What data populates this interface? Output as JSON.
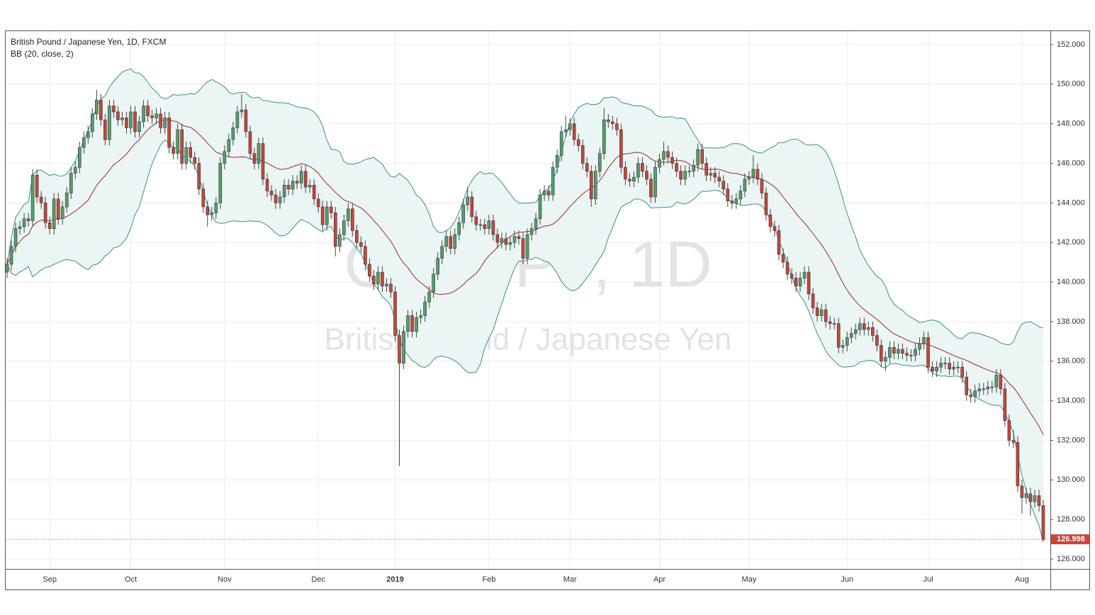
{
  "chart_data": {
    "type": "candlestick",
    "title": "British Pound / Japanese Yen, 1D, FXCM",
    "subtitle": "BB (20, close, 2)",
    "watermark": "GBPJPY, 1D",
    "watermark_subtitle": "British Pound / Japanese Yen",
    "bb_period": 20,
    "bb_mult": 2,
    "up_color": "#53a06b",
    "down_color": "#c8453a",
    "band_color": "#3b8f8c",
    "band_fill": "#eaf5f4",
    "basis_color": "#9b2a2a",
    "grid": true,
    "ylim": [
      125.5,
      152.68
    ],
    "yticks": [
      {
        "value": 126,
        "label": "126.000"
      },
      {
        "value": 128,
        "label": "128.000"
      },
      {
        "value": 130,
        "label": "130.000"
      },
      {
        "value": 132,
        "label": "132.000"
      },
      {
        "value": 134,
        "label": "134.000"
      },
      {
        "value": 136,
        "label": "136.000"
      },
      {
        "value": 138,
        "label": "138.000"
      },
      {
        "value": 140,
        "label": "140.000"
      },
      {
        "value": 142,
        "label": "142.000"
      },
      {
        "value": 144,
        "label": "144.000"
      },
      {
        "value": 146,
        "label": "146.000"
      },
      {
        "value": 148,
        "label": "148.000"
      },
      {
        "value": 150,
        "label": "150.000"
      },
      {
        "value": 152,
        "label": "152.000"
      }
    ],
    "categories": [
      null,
      null,
      null,
      null,
      null,
      null,
      null,
      null,
      null,
      null,
      "Sep",
      null,
      null,
      null,
      null,
      null,
      null,
      null,
      null,
      null,
      null,
      null,
      null,
      null,
      null,
      null,
      null,
      null,
      null,
      "Oct",
      null,
      null,
      null,
      null,
      null,
      null,
      null,
      null,
      null,
      null,
      null,
      null,
      null,
      null,
      null,
      null,
      null,
      null,
      null,
      null,
      null,
      "Nov",
      null,
      null,
      null,
      null,
      null,
      null,
      null,
      null,
      null,
      null,
      null,
      null,
      null,
      null,
      null,
      null,
      null,
      null,
      null,
      null,
      null,
      "Dec",
      null,
      null,
      null,
      null,
      null,
      null,
      null,
      null,
      null,
      null,
      null,
      null,
      null,
      null,
      null,
      null,
      null,
      "2019",
      null,
      null,
      null,
      null,
      null,
      null,
      null,
      null,
      null,
      null,
      null,
      null,
      null,
      null,
      null,
      null,
      null,
      null,
      null,
      null,
      null,
      "Feb",
      null,
      null,
      null,
      null,
      null,
      null,
      null,
      null,
      null,
      null,
      null,
      null,
      null,
      null,
      null,
      null,
      null,
      null,
      "Mar",
      null,
      null,
      null,
      null,
      null,
      null,
      null,
      null,
      null,
      null,
      null,
      null,
      null,
      null,
      null,
      null,
      null,
      null,
      null,
      null,
      "Apr",
      null,
      null,
      null,
      null,
      null,
      null,
      null,
      null,
      null,
      null,
      null,
      null,
      null,
      null,
      null,
      null,
      null,
      null,
      null,
      null,
      "May",
      null,
      null,
      null,
      null,
      null,
      null,
      null,
      null,
      null,
      null,
      null,
      null,
      null,
      null,
      null,
      null,
      null,
      null,
      null,
      null,
      null,
      null,
      "Jun",
      null,
      null,
      null,
      null,
      null,
      null,
      null,
      null,
      null,
      null,
      null,
      null,
      null,
      null,
      null,
      null,
      null,
      null,
      "Jul",
      null,
      null,
      null,
      null,
      null,
      null,
      null,
      null,
      null,
      null,
      null,
      null,
      null,
      null,
      null,
      null,
      null,
      null,
      null,
      null,
      null,
      "Aug",
      null,
      null,
      null,
      null,
      null
    ],
    "open": [
      140.5,
      140.9,
      141.8,
      142.7,
      142.8,
      143.2,
      143.1,
      145.4,
      144.3,
      144.0,
      143.0,
      142.7,
      144.2,
      143.2,
      143.8,
      144.5,
      145.5,
      145.8,
      146.8,
      147.3,
      147.6,
      148.5,
      149.2,
      148.2,
      147.2,
      148.9,
      148.6,
      148.2,
      148.3,
      147.8,
      148.6,
      147.6,
      148.1,
      148.9,
      148.4,
      148.3,
      148.5,
      147.8,
      148.3,
      146.8,
      146.5,
      147.7,
      146.0,
      146.8,
      146.3,
      146.0,
      144.7,
      143.8,
      143.4,
      143.5,
      144.0,
      146.0,
      146.6,
      147.2,
      147.8,
      148.6,
      148.7,
      147.6,
      146.5,
      146.0,
      147.0,
      145.2,
      144.6,
      144.4,
      144.0,
      144.3,
      144.9,
      144.7,
      145.1,
      145.0,
      145.6,
      144.8,
      144.9,
      144.2,
      143.8,
      142.9,
      143.8,
      143.5,
      141.8,
      142.4,
      143.1,
      143.7,
      142.6,
      142.0,
      141.8,
      140.9,
      140.3,
      139.9,
      140.5,
      139.8,
      139.9,
      139.5,
      137.3,
      135.9,
      137.5,
      138.3,
      137.5,
      138.2,
      138.3,
      139.0,
      139.5,
      140.4,
      141.2,
      141.8,
      142.3,
      141.7,
      142.4,
      143.0,
      143.9,
      144.3,
      143.3,
      142.9,
      142.9,
      142.7,
      143.1,
      142.4,
      142.0,
      142.2,
      141.9,
      142.0,
      142.3,
      142.2,
      141.2,
      142.4,
      142.7,
      143.2,
      144.4,
      144.6,
      144.4,
      145.8,
      146.4,
      147.6,
      147.7,
      148.0,
      147.2,
      146.9,
      146.0,
      145.6,
      144.2,
      145.6,
      146.5,
      148.2,
      148.1,
      148.0,
      147.7,
      145.8,
      145.2,
      145.1,
      145.3,
      146.0,
      145.6,
      145.2,
      144.3,
      145.8,
      146.2,
      146.6,
      146.3,
      146.0,
      145.6,
      145.2,
      145.6,
      145.6,
      145.9,
      146.7,
      146.0,
      145.4,
      145.5,
      145.3,
      145.1,
      144.7,
      144.1,
      144.0,
      144.2,
      144.6,
      145.2,
      145.3,
      145.7,
      145.2,
      144.5,
      143.4,
      142.8,
      142.6,
      141.4,
      141.0,
      140.4,
      140.2,
      139.8,
      140.2,
      140.5,
      139.4,
      138.7,
      138.3,
      138.6,
      138.0,
      137.9,
      137.9,
      136.7,
      136.8,
      137.2,
      137.4,
      137.6,
      137.9,
      137.6,
      137.7,
      137.3,
      136.8,
      136.0,
      136.2,
      136.7,
      136.4,
      136.6,
      136.4,
      136.3,
      136.3,
      136.6,
      136.9,
      137.2,
      135.7,
      135.5,
      135.7,
      135.9,
      135.9,
      135.6,
      135.7,
      135.7,
      135.2,
      134.3,
      134.2,
      134.5,
      134.6,
      134.6,
      134.7,
      134.7,
      135.3,
      134.6,
      133.0,
      132.0,
      131.9,
      129.7,
      129.1,
      129.3,
      128.9,
      129.2,
      128.7
    ],
    "high": [
      141.2,
      142.1,
      143.0,
      143.1,
      143.5,
      143.5,
      145.7,
      145.7,
      144.6,
      144.3,
      143.3,
      144.5,
      144.5,
      144.1,
      144.8,
      145.8,
      146.1,
      147.1,
      147.6,
      147.9,
      148.8,
      149.7,
      149.5,
      148.5,
      149.2,
      149.2,
      148.9,
      148.6,
      148.6,
      148.9,
      148.9,
      148.4,
      149.2,
      149.2,
      148.7,
      148.8,
      148.8,
      148.6,
      148.6,
      147.1,
      148.0,
      148.0,
      147.1,
      147.1,
      146.6,
      146.3,
      145.0,
      144.1,
      143.8,
      144.3,
      146.3,
      146.9,
      147.5,
      148.1,
      148.9,
      149.5,
      149.0,
      147.9,
      146.8,
      147.3,
      147.3,
      145.5,
      144.9,
      144.7,
      144.6,
      145.2,
      145.2,
      145.4,
      145.4,
      145.9,
      145.9,
      145.2,
      145.2,
      144.5,
      144.1,
      144.1,
      144.1,
      143.8,
      142.7,
      143.4,
      144.0,
      144.0,
      142.9,
      142.3,
      142.1,
      141.2,
      140.6,
      140.8,
      140.8,
      140.2,
      140.2,
      139.8,
      137.6,
      137.8,
      138.6,
      138.6,
      138.5,
      138.6,
      139.3,
      139.8,
      140.7,
      141.5,
      142.1,
      142.6,
      142.6,
      142.7,
      143.3,
      144.2,
      144.8,
      144.6,
      143.6,
      143.2,
      143.2,
      143.4,
      143.4,
      142.7,
      142.5,
      142.5,
      142.3,
      142.6,
      142.6,
      142.5,
      142.7,
      143.0,
      143.5,
      144.7,
      144.9,
      144.9,
      146.1,
      146.7,
      147.9,
      148.4,
      148.3,
      148.3,
      147.5,
      147.2,
      146.3,
      145.9,
      145.9,
      146.8,
      148.8,
      148.5,
      148.4,
      148.3,
      148.0,
      146.1,
      145.5,
      145.6,
      146.3,
      146.3,
      145.9,
      145.5,
      146.1,
      146.5,
      147.1,
      146.9,
      146.6,
      146.3,
      145.9,
      145.9,
      145.9,
      146.2,
      147.0,
      147.0,
      146.3,
      145.8,
      145.8,
      145.6,
      145.4,
      145.0,
      144.4,
      144.5,
      144.9,
      145.5,
      145.6,
      146.4,
      146.0,
      145.5,
      144.8,
      143.7,
      143.1,
      142.9,
      141.7,
      141.3,
      140.7,
      140.5,
      140.5,
      140.8,
      140.8,
      139.7,
      139.0,
      138.9,
      138.9,
      138.3,
      138.2,
      138.2,
      137.1,
      137.5,
      137.7,
      137.9,
      138.2,
      138.2,
      138.0,
      138.0,
      137.6,
      137.1,
      136.5,
      137.0,
      137.0,
      136.9,
      136.9,
      136.7,
      136.6,
      136.9,
      137.2,
      137.5,
      137.5,
      136.0,
      136.0,
      136.2,
      136.2,
      136.2,
      136.0,
      136.0,
      136.0,
      135.5,
      134.6,
      134.8,
      134.9,
      134.9,
      135.0,
      135.0,
      135.6,
      135.6,
      134.9,
      133.3,
      132.5,
      132.2,
      130.0,
      129.6,
      129.6,
      129.5,
      129.5,
      129.0
    ],
    "low": [
      140.2,
      140.6,
      141.5,
      142.4,
      142.5,
      142.8,
      142.8,
      144.0,
      143.7,
      142.7,
      142.4,
      142.4,
      142.9,
      142.9,
      143.5,
      144.2,
      145.2,
      145.5,
      146.5,
      147.0,
      147.3,
      148.2,
      147.9,
      146.9,
      146.9,
      148.3,
      147.9,
      147.9,
      147.5,
      147.5,
      147.3,
      147.3,
      147.8,
      148.1,
      148.0,
      148.0,
      147.5,
      147.5,
      146.5,
      146.2,
      146.2,
      145.7,
      145.7,
      146.0,
      145.7,
      144.4,
      143.5,
      142.8,
      143.1,
      143.2,
      143.7,
      145.7,
      146.3,
      146.9,
      147.5,
      148.3,
      147.3,
      146.2,
      145.7,
      145.7,
      144.9,
      144.3,
      144.1,
      143.7,
      143.7,
      144.0,
      144.4,
      144.4,
      144.7,
      144.7,
      144.5,
      144.5,
      143.9,
      143.5,
      142.6,
      142.6,
      143.2,
      141.3,
      141.5,
      142.1,
      142.8,
      142.3,
      141.7,
      141.5,
      140.6,
      140.0,
      139.6,
      139.6,
      139.5,
      139.5,
      139.2,
      137.0,
      130.7,
      135.6,
      137.2,
      137.2,
      137.2,
      137.9,
      138.0,
      138.7,
      139.2,
      140.1,
      140.9,
      141.5,
      141.4,
      141.4,
      142.1,
      142.7,
      143.6,
      143.0,
      142.6,
      142.6,
      142.4,
      142.4,
      142.1,
      141.7,
      141.7,
      141.6,
      141.6,
      141.7,
      141.9,
      140.9,
      140.9,
      142.1,
      142.4,
      142.9,
      144.1,
      144.1,
      144.1,
      145.5,
      146.1,
      147.3,
      147.4,
      146.9,
      146.6,
      145.7,
      145.3,
      143.8,
      143.9,
      145.3,
      146.2,
      147.8,
      147.7,
      147.4,
      145.5,
      144.9,
      144.8,
      144.8,
      145.0,
      145.3,
      144.9,
      144.0,
      144.0,
      145.5,
      145.9,
      146.0,
      145.7,
      145.3,
      144.9,
      144.9,
      145.3,
      145.3,
      145.6,
      145.7,
      145.1,
      145.1,
      145.0,
      144.8,
      144.4,
      143.8,
      143.7,
      143.7,
      143.9,
      144.3,
      144.9,
      145.0,
      144.9,
      144.2,
      143.1,
      142.5,
      142.3,
      141.1,
      140.7,
      140.1,
      139.9,
      139.5,
      139.5,
      139.9,
      139.1,
      138.4,
      138.0,
      138.0,
      137.7,
      137.6,
      137.6,
      136.4,
      136.4,
      136.5,
      136.9,
      137.1,
      137.3,
      137.3,
      137.3,
      137.0,
      136.5,
      135.7,
      135.5,
      135.9,
      136.1,
      136.1,
      136.1,
      136.0,
      136.0,
      136.0,
      136.3,
      136.6,
      135.4,
      135.2,
      135.2,
      135.4,
      135.6,
      135.3,
      135.3,
      135.4,
      134.9,
      134.0,
      133.9,
      133.9,
      134.2,
      134.3,
      134.3,
      134.4,
      134.4,
      134.3,
      132.7,
      131.7,
      131.6,
      129.4,
      128.3,
      128.8,
      128.2,
      128.6,
      128.4,
      126.9
    ],
    "close": [
      140.9,
      141.8,
      142.7,
      142.8,
      143.2,
      143.1,
      145.4,
      144.3,
      144.0,
      143.0,
      142.7,
      144.2,
      143.2,
      143.8,
      144.5,
      145.5,
      145.8,
      146.8,
      147.3,
      147.6,
      148.5,
      149.2,
      148.2,
      147.2,
      148.9,
      148.6,
      148.2,
      148.3,
      147.8,
      148.6,
      147.6,
      148.1,
      148.9,
      148.4,
      148.3,
      148.5,
      147.8,
      148.3,
      146.8,
      146.5,
      147.7,
      146.0,
      146.8,
      146.3,
      146.0,
      144.7,
      143.8,
      143.4,
      143.5,
      144.0,
      146.0,
      146.6,
      147.2,
      147.8,
      148.6,
      148.7,
      147.6,
      146.5,
      146.0,
      147.0,
      145.2,
      144.6,
      144.4,
      144.0,
      144.3,
      144.9,
      144.7,
      145.1,
      145.0,
      145.6,
      144.8,
      144.9,
      144.2,
      143.8,
      142.9,
      143.8,
      143.5,
      141.8,
      142.4,
      143.1,
      143.7,
      142.6,
      142.0,
      141.8,
      140.9,
      140.3,
      139.9,
      140.5,
      139.8,
      139.9,
      139.5,
      137.3,
      135.9,
      137.5,
      138.3,
      137.5,
      138.2,
      138.3,
      139.0,
      139.5,
      140.4,
      141.2,
      141.8,
      142.3,
      141.7,
      142.4,
      143.0,
      143.9,
      144.3,
      143.3,
      142.9,
      142.9,
      142.7,
      143.1,
      142.4,
      142.0,
      142.2,
      141.9,
      142.0,
      142.3,
      142.2,
      141.2,
      142.4,
      142.7,
      143.2,
      144.4,
      144.6,
      144.4,
      145.8,
      146.4,
      147.6,
      147.7,
      148.0,
      147.2,
      146.9,
      146.0,
      145.6,
      144.2,
      145.6,
      146.5,
      148.2,
      148.1,
      148.0,
      147.7,
      145.8,
      145.2,
      145.1,
      145.3,
      146.0,
      145.6,
      145.2,
      144.3,
      145.8,
      146.2,
      146.6,
      146.3,
      146.0,
      145.6,
      145.2,
      145.6,
      145.6,
      145.9,
      146.7,
      146.0,
      145.4,
      145.5,
      145.3,
      145.1,
      144.7,
      144.1,
      144.0,
      144.2,
      144.6,
      145.2,
      145.3,
      145.7,
      145.2,
      144.5,
      143.4,
      142.8,
      142.6,
      141.4,
      141.0,
      140.4,
      140.2,
      139.8,
      140.2,
      140.5,
      139.4,
      138.7,
      138.3,
      138.6,
      138.0,
      137.9,
      137.9,
      136.7,
      136.8,
      137.2,
      137.4,
      137.6,
      137.9,
      137.6,
      137.7,
      137.3,
      136.8,
      136.0,
      136.2,
      136.7,
      136.4,
      136.6,
      136.4,
      136.3,
      136.3,
      136.6,
      136.9,
      137.2,
      135.7,
      135.5,
      135.7,
      135.9,
      135.9,
      135.6,
      135.7,
      135.7,
      135.2,
      134.3,
      134.2,
      134.5,
      134.6,
      134.6,
      134.7,
      134.7,
      135.3,
      134.6,
      133.0,
      132.0,
      131.9,
      129.7,
      129.1,
      129.3,
      128.9,
      129.2,
      128.7,
      126.998
    ]
  }
}
